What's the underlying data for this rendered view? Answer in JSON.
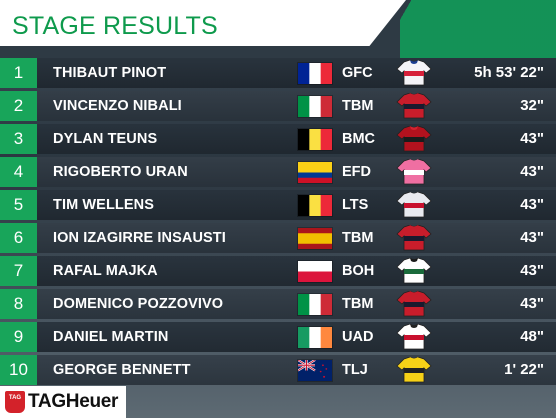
{
  "header": {
    "title": "STAGE RESULTS"
  },
  "sponsor": {
    "shield_text": "TAG",
    "name": "TAGHeuer"
  },
  "results": [
    {
      "position": "1",
      "name": "THIBAUT PINOT",
      "flag": "fra",
      "team": "GFC",
      "jersey": "gfc",
      "time": "5h 53' 22\""
    },
    {
      "position": "2",
      "name": "VINCENZO NIBALI",
      "flag": "ita",
      "team": "TBM",
      "jersey": "tbm",
      "time": "32\""
    },
    {
      "position": "3",
      "name": "DYLAN TEUNS",
      "flag": "bel",
      "team": "BMC",
      "jersey": "bmc",
      "time": "43\""
    },
    {
      "position": "4",
      "name": "RIGOBERTO URAN",
      "flag": "col",
      "team": "EFD",
      "jersey": "efd",
      "time": "43\""
    },
    {
      "position": "5",
      "name": "TIM WELLENS",
      "flag": "bel",
      "team": "LTS",
      "jersey": "lts",
      "time": "43\""
    },
    {
      "position": "6",
      "name": "ION IZAGIRRE INSAUSTI",
      "flag": "esp",
      "team": "TBM",
      "jersey": "tbm",
      "time": "43\""
    },
    {
      "position": "7",
      "name": "RAFAL MAJKA",
      "flag": "pol",
      "team": "BOH",
      "jersey": "boh",
      "time": "43\""
    },
    {
      "position": "8",
      "name": "DOMENICO POZZOVIVO",
      "flag": "ita",
      "team": "TBM",
      "jersey": "tbm",
      "time": "43\""
    },
    {
      "position": "9",
      "name": "DANIEL MARTIN",
      "flag": "irl",
      "team": "UAD",
      "jersey": "uad",
      "time": "48\""
    },
    {
      "position": "10",
      "name": "GEORGE BENNETT",
      "flag": "nzl",
      "team": "TLJ",
      "jersey": "tlj",
      "time": "1' 22\""
    }
  ],
  "colors": {
    "accent_green": "#18a55a",
    "title_green": "#0e9a4c"
  }
}
